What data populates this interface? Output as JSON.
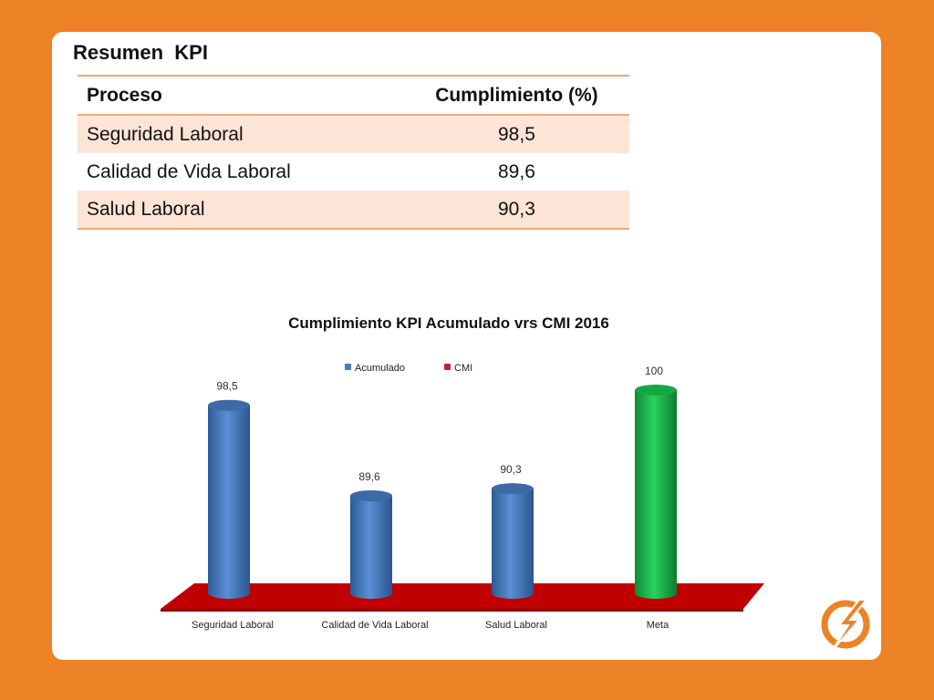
{
  "summary": {
    "title": "Resumen  KPI",
    "columns": [
      "Proceso",
      "Cumplimiento (%)"
    ],
    "rows": [
      {
        "proceso": "Seguridad Laboral",
        "cumplimiento": "98,5"
      },
      {
        "proceso": "Calidad de Vida Laboral",
        "cumplimiento": "89,6"
      },
      {
        "proceso": "Salud Laboral",
        "cumplimiento": "90,3"
      }
    ]
  },
  "chart_data": {
    "type": "bar",
    "title": "Cumplimiento KPI Acumulado vrs CMI 2016",
    "categories": [
      "Seguridad Laboral",
      "Calidad de Vida Laboral",
      "Salud Laboral",
      "Meta"
    ],
    "series": [
      {
        "name": "Acumulado",
        "color": "#4a7ebb",
        "values": [
          98.5,
          89.6,
          90.3,
          null
        ]
      },
      {
        "name": "CMI",
        "color": "#c0282d",
        "values": [
          null,
          null,
          null,
          null
        ]
      }
    ],
    "meta": {
      "value": 100,
      "label": "100",
      "color": "#19b04b"
    },
    "data_labels": [
      "98,5",
      "89,6",
      "90,3",
      "100"
    ],
    "legend_position": "top",
    "floor_color": "#c00000",
    "grid": false
  },
  "colors": {
    "background": "#ee8226",
    "card": "#ffffff",
    "table_stripe": "#fce4d6",
    "table_rule": "#f0a878"
  },
  "icons": {
    "logo": "lightning-circle-icon"
  }
}
